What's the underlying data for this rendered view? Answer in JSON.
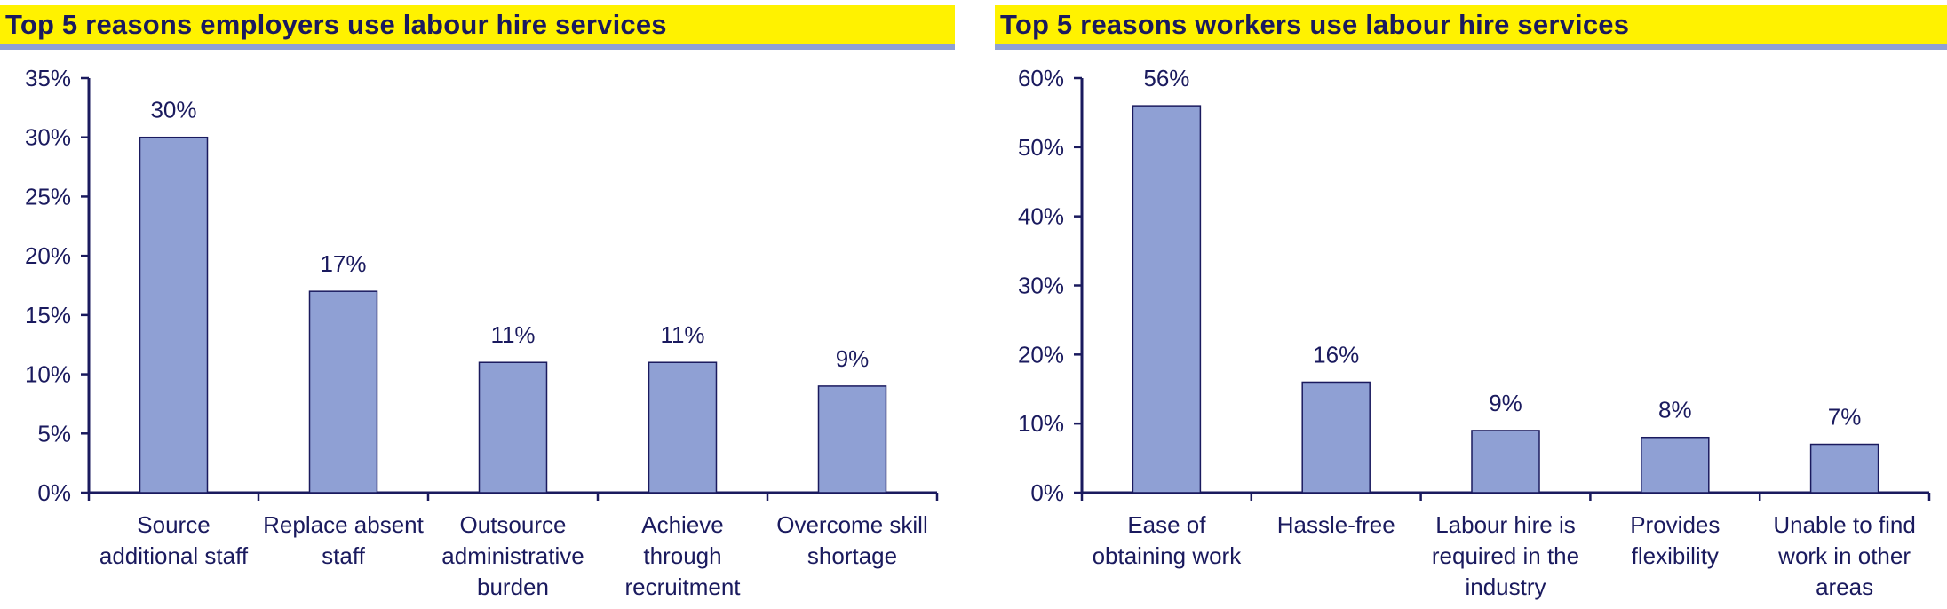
{
  "colors": {
    "bar": "#8fa0d4",
    "bar_edge": "#1a1a5e",
    "axis": "#1a1a5e",
    "text": "#1a1a5e",
    "title_bg": "#fff200",
    "title_rule": "#8fa0d4"
  },
  "chart_data": [
    {
      "type": "bar",
      "title": "Top 5 reasons employers use labour hire services",
      "categories": [
        [
          "Source",
          "additional staff"
        ],
        [
          "Replace absent",
          "staff"
        ],
        [
          "Outsource",
          "administrative",
          "burden"
        ],
        [
          "Achieve",
          "through",
          "recruitment"
        ],
        [
          "Overcome skill",
          "shortage"
        ]
      ],
      "values": [
        30,
        17,
        11,
        11,
        9
      ],
      "data_labels": [
        "30%",
        "17%",
        "11%",
        "11%",
        "9%"
      ],
      "ylim": [
        0,
        35
      ],
      "yticks": [
        "0%",
        "5%",
        "10%",
        "15%",
        "20%",
        "25%",
        "30%",
        "35%"
      ],
      "ytick_values": [
        0,
        5,
        10,
        15,
        20,
        25,
        30,
        35
      ],
      "xlabel": "",
      "ylabel": "",
      "grid": false,
      "legend": "none"
    },
    {
      "type": "bar",
      "title": "Top 5 reasons workers use labour hire services",
      "categories": [
        [
          "Ease of",
          "obtaining work"
        ],
        [
          "Hassle-free"
        ],
        [
          "Labour hire is",
          "required in the",
          "industry"
        ],
        [
          "Provides",
          "flexibility"
        ],
        [
          "Unable to find",
          "work in other",
          "areas"
        ]
      ],
      "values": [
        56,
        16,
        9,
        8,
        7
      ],
      "data_labels": [
        "56%",
        "16%",
        "9%",
        "8%",
        "7%"
      ],
      "ylim": [
        0,
        60
      ],
      "yticks": [
        "0%",
        "10%",
        "20%",
        "30%",
        "40%",
        "50%",
        "60%"
      ],
      "ytick_values": [
        0,
        10,
        20,
        30,
        40,
        50,
        60
      ],
      "xlabel": "",
      "ylabel": "",
      "grid": false,
      "legend": "none"
    }
  ]
}
